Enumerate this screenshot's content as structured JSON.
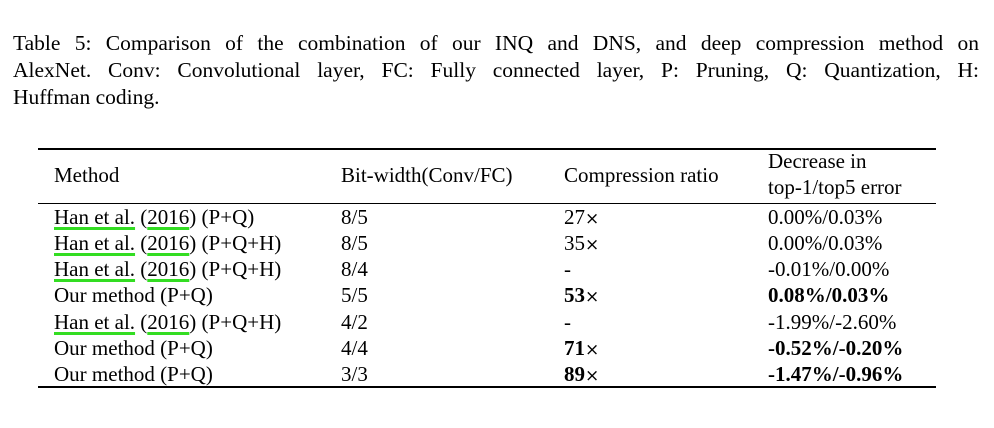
{
  "caption": {
    "lines": [
      "Table 5: Comparison of the combination of our INQ and DNS, and deep compression method on",
      "AlexNet.  Conv: Convolutional layer, FC: Fully connected layer, P: Pruning, Q: Quantization, H:",
      "Huffman coding."
    ]
  },
  "table": {
    "headers": {
      "method": "Method",
      "bitwidth": "Bit-width(Conv/FC)",
      "ratio": "Compression ratio",
      "error_line1": "Decrease in",
      "error_line2": "top-1/top5 error"
    },
    "rows": [
      {
        "cite_author": "Han et al.",
        "cite_year": "2016",
        "suffix": " (P+Q)",
        "method": "",
        "bits": "8/5",
        "ratio": "27",
        "times": "×",
        "error": "0.00%/0.03%",
        "bold": false
      },
      {
        "cite_author": "Han et al.",
        "cite_year": "2016",
        "suffix": " (P+Q+H)",
        "method": "",
        "bits": "8/5",
        "ratio": "35",
        "times": "×",
        "error": "0.00%/0.03%",
        "bold": false
      },
      {
        "cite_author": "Han et al.",
        "cite_year": "2016",
        "suffix": " (P+Q+H)",
        "method": "",
        "bits": "8/4",
        "ratio": "-",
        "times": "",
        "error": "-0.01%/0.00%",
        "bold": false
      },
      {
        "cite_author": "",
        "cite_year": "",
        "suffix": "",
        "method": "Our method (P+Q)",
        "bits": "5/5",
        "ratio": "53",
        "times": "×",
        "error": "0.08%/0.03%",
        "bold": true
      },
      {
        "cite_author": "Han et al.",
        "cite_year": "2016",
        "suffix": " (P+Q+H)",
        "method": "",
        "bits": "4/2",
        "ratio": "-",
        "times": "",
        "error": "-1.99%/-2.60%",
        "bold": false
      },
      {
        "cite_author": "",
        "cite_year": "",
        "suffix": "",
        "method": "Our method (P+Q)",
        "bits": "4/4",
        "ratio": "71",
        "times": "×",
        "error": "-0.52%/-0.20%",
        "bold": true
      },
      {
        "cite_author": "",
        "cite_year": "",
        "suffix": "",
        "method": "Our method (P+Q)",
        "bits": "3/3",
        "ratio": "89",
        "times": "×",
        "error": "-1.47%/-0.96%",
        "bold": true
      }
    ]
  },
  "colors": {
    "citation_underline": "#33dd22"
  }
}
